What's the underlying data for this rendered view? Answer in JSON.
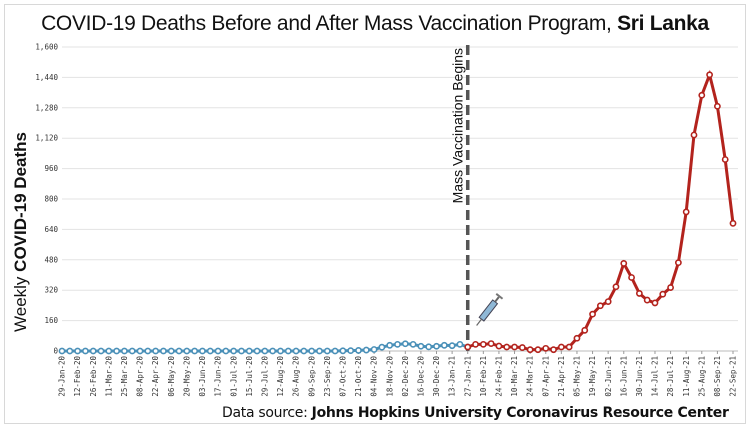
{
  "chart_data": {
    "type": "line",
    "title": "COVID-19 Deaths Before and After Mass Vaccination Program,",
    "title_bold": "Sri Lanka",
    "ylabel": "Weekly",
    "ylabel_bold": "COVID-19 Deaths",
    "xlabel": "",
    "ylim": [
      0,
      1600
    ],
    "y_ticks": [
      0,
      160,
      320,
      480,
      640,
      800,
      960,
      1120,
      1280,
      1440,
      1600
    ],
    "y_tick_labels": [
      "0",
      "160",
      "320",
      "480",
      "640",
      "800",
      "960",
      "1,120",
      "1,280",
      "1,440",
      "1,600"
    ],
    "grid": true,
    "x": [
      "29-Jan-20",
      "05-Feb-20",
      "12-Feb-20",
      "19-Feb-20",
      "26-Feb-20",
      "04-Mar-20",
      "11-Mar-20",
      "18-Mar-20",
      "25-Mar-20",
      "01-Apr-20",
      "08-Apr-20",
      "15-Apr-20",
      "22-Apr-20",
      "29-Apr-20",
      "06-May-20",
      "13-May-20",
      "20-May-20",
      "27-May-20",
      "03-Jun-20",
      "10-Jun-20",
      "17-Jun-20",
      "24-Jun-20",
      "01-Jul-20",
      "08-Jul-20",
      "15-Jul-20",
      "22-Jul-20",
      "29-Jul-20",
      "05-Aug-20",
      "12-Aug-20",
      "19-Aug-20",
      "26-Aug-20",
      "02-Sep-20",
      "09-Sep-20",
      "16-Sep-20",
      "23-Sep-20",
      "30-Sep-20",
      "07-Oct-20",
      "14-Oct-20",
      "21-Oct-20",
      "28-Oct-20",
      "04-Nov-20",
      "11-Nov-20",
      "18-Nov-20",
      "25-Nov-20",
      "02-Dec-20",
      "09-Dec-20",
      "16-Dec-20",
      "23-Dec-20",
      "30-Dec-20",
      "06-Jan-21",
      "13-Jan-21",
      "20-Jan-21",
      "27-Jan-21",
      "03-Feb-21",
      "10-Feb-21",
      "17-Feb-21",
      "24-Feb-21",
      "03-Mar-21",
      "10-Mar-21",
      "17-Mar-21",
      "24-Mar-21",
      "31-Mar-21",
      "07-Apr-21",
      "14-Apr-21",
      "21-Apr-21",
      "28-Apr-21",
      "05-May-21",
      "12-May-21",
      "19-May-21",
      "26-May-21",
      "02-Jun-21",
      "09-Jun-21",
      "16-Jun-21",
      "23-Jun-21",
      "30-Jun-21",
      "07-Jul-21",
      "14-Jul-21",
      "21-Jul-21",
      "28-Jul-21",
      "04-Aug-21",
      "11-Aug-21",
      "18-Aug-21",
      "25-Aug-21",
      "01-Sep-21",
      "08-Sep-21",
      "15-Sep-21",
      "22-Sep-21"
    ],
    "x_tick_labels": [
      "29-Jan-20",
      "12-Feb-20",
      "26-Feb-20",
      "11-Mar-20",
      "25-Mar-20",
      "08-Apr-20",
      "22-Apr-20",
      "06-May-20",
      "20-May-20",
      "03-Jun-20",
      "17-Jun-20",
      "01-Jul-20",
      "15-Jul-20",
      "29-Jul-20",
      "12-Aug-20",
      "26-Aug-20",
      "09-Sep-20",
      "23-Sep-20",
      "07-Oct-20",
      "21-Oct-20",
      "04-Nov-20",
      "18-Nov-20",
      "02-Dec-20",
      "16-Dec-20",
      "30-Dec-20",
      "13-Jan-21",
      "27-Jan-21",
      "10-Feb-21",
      "24-Feb-21",
      "10-Mar-21",
      "24-Mar-21",
      "07-Apr-21",
      "21-Apr-21",
      "05-May-21",
      "19-May-21",
      "02-Jun-21",
      "16-Jun-21",
      "30-Jun-21",
      "14-Jul-21",
      "28-Jul-21",
      "11-Aug-21",
      "25-Aug-21",
      "08-Sep-21",
      "22-Sep-21"
    ],
    "series": [
      {
        "color": "#4a90b8",
        "values": [
          0,
          0,
          0,
          0,
          0,
          0,
          0,
          0,
          0,
          0,
          0,
          0,
          0,
          0,
          0,
          0,
          0,
          0,
          0,
          0,
          0,
          0,
          0,
          0,
          0,
          0,
          0,
          0,
          0,
          0,
          0,
          0,
          0,
          0,
          0,
          0,
          1,
          2,
          3,
          5,
          8,
          20,
          30,
          35,
          38,
          35,
          25,
          22,
          25,
          30,
          28,
          35,
          21,
          null,
          null,
          null,
          null,
          null,
          null,
          null,
          null,
          null,
          null,
          null,
          null,
          null,
          null,
          null,
          null,
          null,
          null,
          null,
          null,
          null,
          null,
          null,
          null,
          null,
          null,
          null,
          null,
          null,
          null,
          null,
          null,
          null,
          null
        ]
      },
      {
        "color": "#b3231d",
        "values": [
          null,
          null,
          null,
          null,
          null,
          null,
          null,
          null,
          null,
          null,
          null,
          null,
          null,
          null,
          null,
          null,
          null,
          null,
          null,
          null,
          null,
          null,
          null,
          null,
          null,
          null,
          null,
          null,
          null,
          null,
          null,
          null,
          null,
          null,
          null,
          null,
          null,
          null,
          null,
          null,
          null,
          null,
          null,
          null,
          null,
          null,
          null,
          null,
          null,
          null,
          null,
          null,
          21,
          35,
          35,
          39,
          26,
          21,
          21,
          18,
          7,
          7,
          14,
          7,
          21,
          21,
          67,
          109,
          194,
          238,
          260,
          338,
          461,
          387,
          303,
          268,
          253,
          299,
          334,
          465,
          732,
          1137,
          1346,
          1454,
          1288,
          1008,
          672
        ]
      }
    ],
    "annotations": [
      {
        "text": "Mass Vaccination Begins",
        "at": "27-Jan-21",
        "style": "dashed vertical line",
        "icon": "syringe-icon"
      }
    ]
  },
  "source": {
    "prefix": "Data source:",
    "name": "Johns Hopkins University Coronavirus Resource Center"
  }
}
